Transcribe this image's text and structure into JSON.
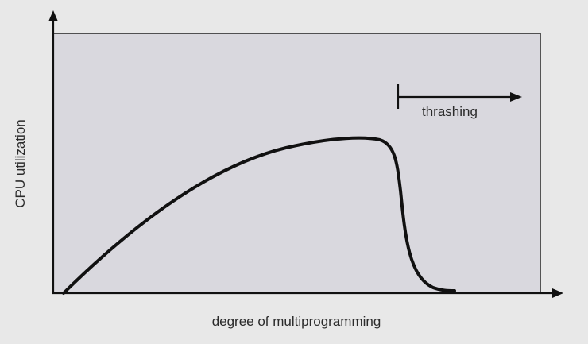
{
  "diagram": {
    "x_axis_label": "degree of multiprogramming",
    "y_axis_label": "CPU utilization",
    "annotation_label": "thrashing",
    "colors": {
      "background": "#e8e8e8",
      "plot_area": "#d9d8de",
      "stroke": "#111111",
      "text": "#2b2b2b"
    }
  }
}
